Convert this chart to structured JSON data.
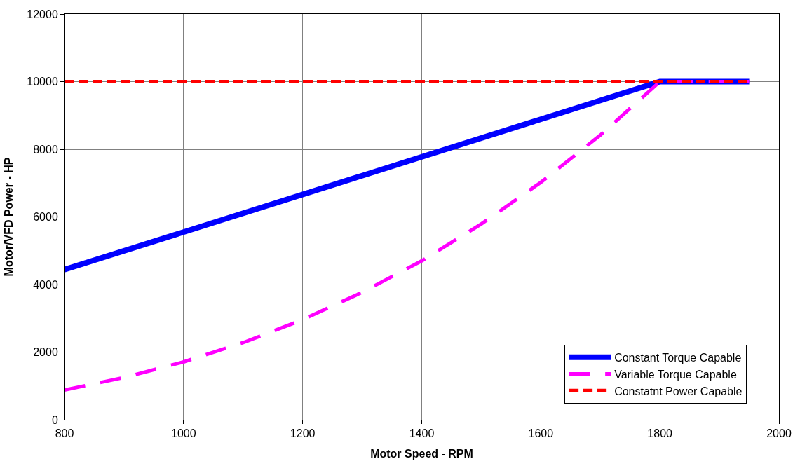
{
  "chart_data": {
    "type": "line",
    "xlabel": "Motor Speed - RPM",
    "ylabel": "Motor/VFD Power - HP",
    "xlim": [
      800,
      2000
    ],
    "xticks": [
      800,
      1000,
      1200,
      1400,
      1600,
      1800,
      2000
    ],
    "ylim": [
      0,
      12000
    ],
    "yticks": [
      0,
      2000,
      4000,
      6000,
      8000,
      10000,
      12000
    ],
    "grid": true,
    "legend": "bottom right",
    "marker": "none",
    "series": [
      {
        "name": "Constant Torque Capable",
        "color": "#0000ff",
        "line_style": "solid",
        "x": [
          800,
          1800,
          1950
        ],
        "values": [
          4440,
          10000,
          10000
        ]
      },
      {
        "name": "Variable Torque Capable",
        "color": "#ff00ff",
        "line_style": "dashed",
        "x": [
          800,
          900,
          1000,
          1100,
          1200,
          1300,
          1400,
          1500,
          1600,
          1700,
          1800,
          1950
        ],
        "values": [
          880,
          1250,
          1710,
          2280,
          2960,
          3770,
          4700,
          5790,
          7020,
          8420,
          10000,
          10000
        ]
      },
      {
        "name": "Constatnt Power Capable",
        "color": "#ff0000",
        "line_style": "dashed",
        "x": [
          800,
          1950
        ],
        "values": [
          10000,
          10000
        ]
      }
    ]
  }
}
